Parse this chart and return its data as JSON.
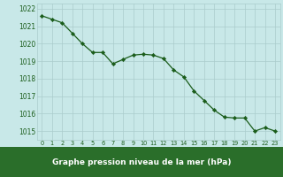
{
  "x": [
    0,
    1,
    2,
    3,
    4,
    5,
    6,
    7,
    8,
    9,
    10,
    11,
    12,
    13,
    14,
    15,
    16,
    17,
    18,
    19,
    20,
    21,
    22,
    23
  ],
  "y": [
    1021.6,
    1021.4,
    1021.2,
    1020.6,
    1020.0,
    1019.5,
    1019.5,
    1018.85,
    1019.1,
    1019.35,
    1019.4,
    1019.35,
    1019.15,
    1018.5,
    1018.1,
    1017.3,
    1016.75,
    1016.2,
    1015.8,
    1015.75,
    1015.75,
    1015.0,
    1015.2,
    1015.0
  ],
  "ylabel_ticks": [
    1015,
    1016,
    1017,
    1018,
    1019,
    1020,
    1021,
    1022
  ],
  "xlabel_label": "Graphe pression niveau de la mer (hPa)",
  "ylim": [
    1014.5,
    1022.3
  ],
  "xlim": [
    -0.5,
    23.5
  ],
  "line_color": "#1a5c1a",
  "marker_color": "#1a5c1a",
  "bg_color": "#c8e8e8",
  "grid_color_major": "#aacccc",
  "grid_color_minor": "#ccdddd",
  "tick_label_color": "#1a5c1a",
  "bottom_bar_color": "#2a6e2a",
  "bottom_text_color": "#ffffff",
  "figure_bg": "#c8e8e8"
}
